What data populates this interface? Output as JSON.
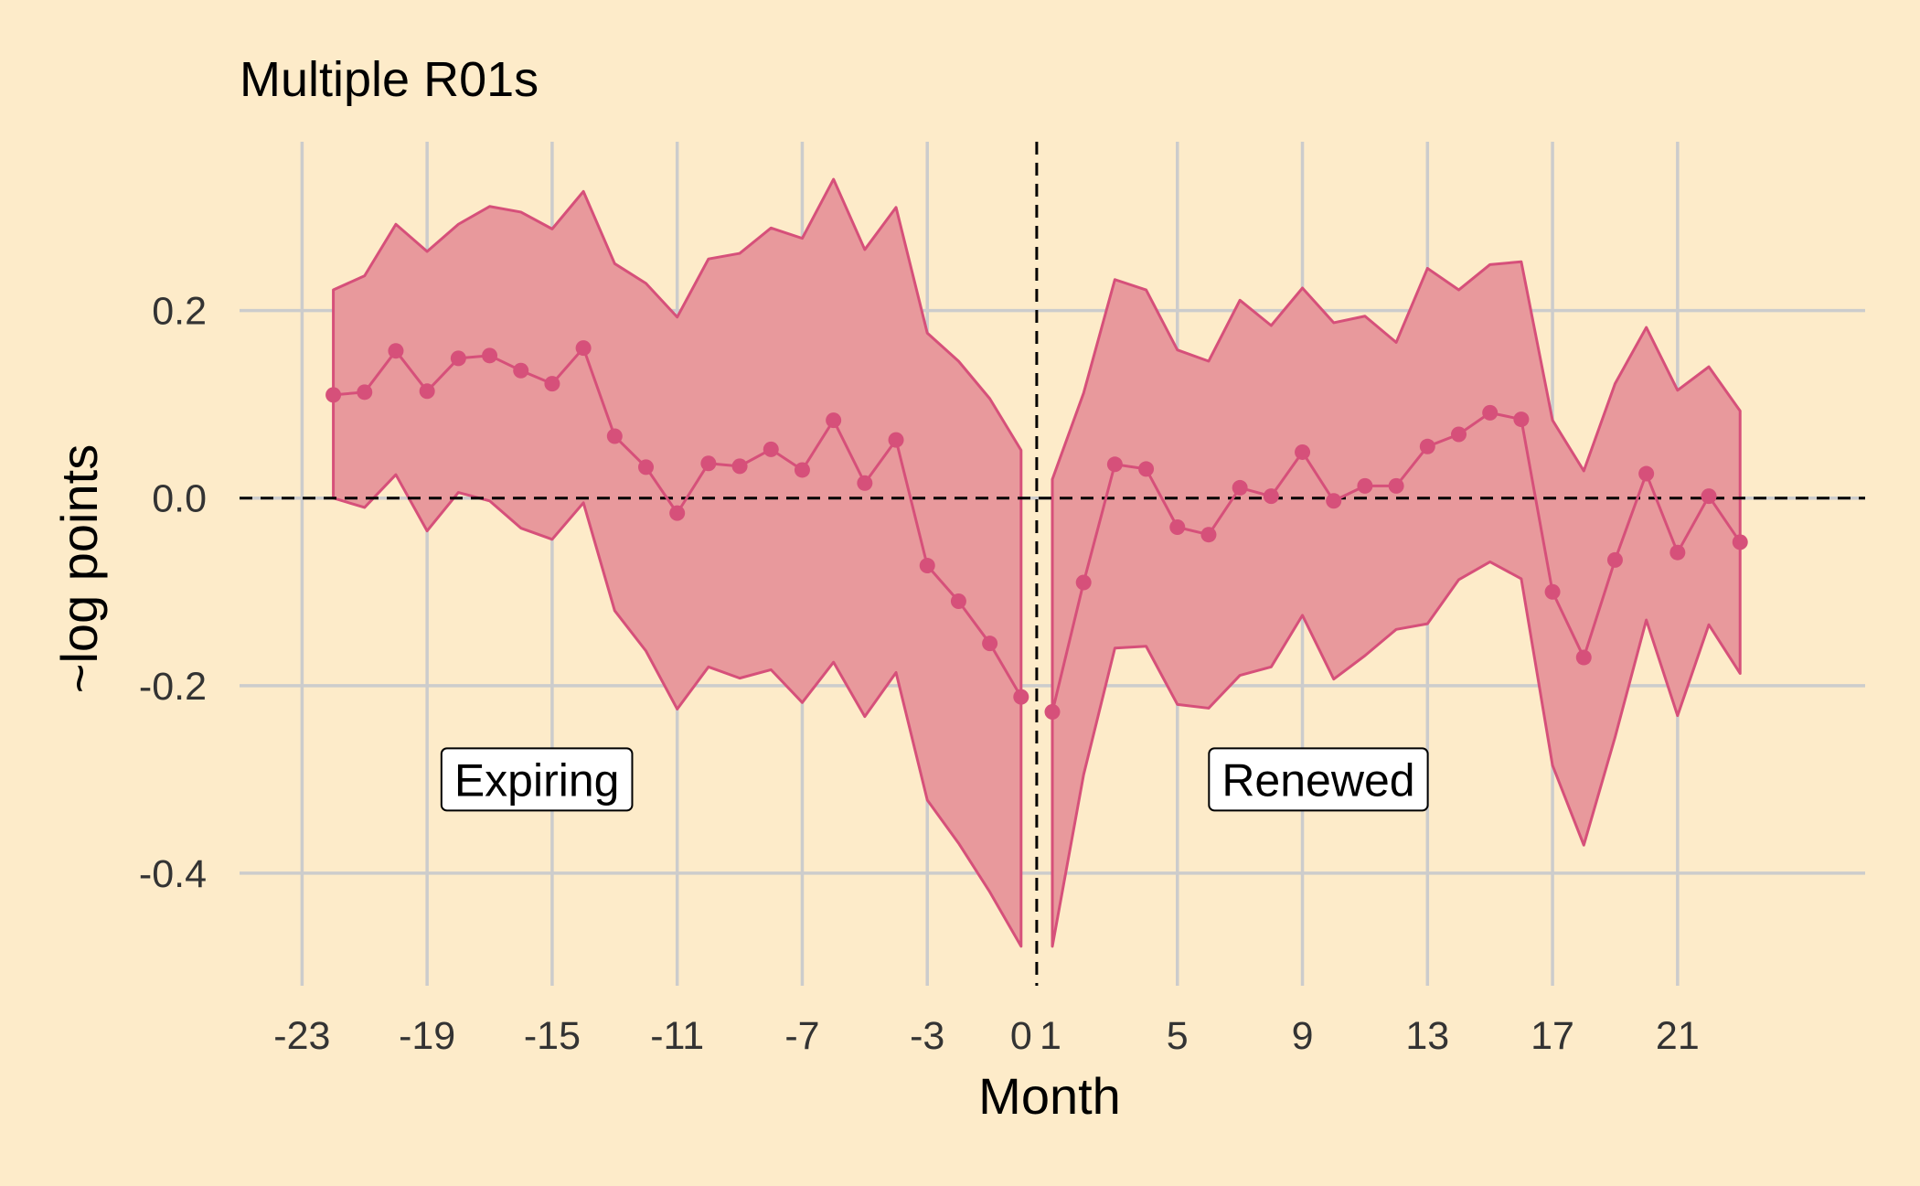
{
  "chart_data": {
    "type": "line",
    "title": "Multiple R01s",
    "xlabel": "Month",
    "ylabel": "~log points",
    "xlim": [
      -25,
      27
    ],
    "ylim": [
      -0.52,
      0.38
    ],
    "x_ticks": [
      -23,
      -19,
      -15,
      -11,
      -7,
      -3,
      0,
      1,
      5,
      9,
      13,
      17,
      21
    ],
    "x_tick_labels": [
      "-23",
      "-19",
      "-15",
      "-11",
      "-7",
      "-3",
      "0",
      "1",
      "5",
      "9",
      "13",
      "17",
      "21"
    ],
    "y_ticks": [
      0.2,
      0.0,
      -0.2,
      -0.4
    ],
    "y_tick_labels": [
      "0.2",
      "0.0",
      "-0.2",
      "-0.4"
    ],
    "grid": true,
    "reference_lines": {
      "horizontal": 0,
      "vertical": 0
    },
    "colors": {
      "line": "#d6507a",
      "band": "#e8999c",
      "background": "#fdebc9",
      "grid": "#cccccc"
    },
    "annotations": [
      {
        "text": "Expiring",
        "x": -19,
        "y": -0.3
      },
      {
        "text": "Renewed",
        "x": 6,
        "y": -0.3
      }
    ],
    "series": [
      {
        "segment": "expiring",
        "x": [
          -22,
          -21,
          -20,
          -19,
          -18,
          -17,
          -16,
          -15,
          -14,
          -13,
          -12,
          -11,
          -10,
          -9,
          -8,
          -7,
          -6,
          -5,
          -4,
          -3,
          -2,
          -1,
          0
        ],
        "y": [
          0.11,
          0.113,
          0.157,
          0.114,
          0.149,
          0.152,
          0.136,
          0.122,
          0.16,
          0.066,
          0.033,
          -0.016,
          0.037,
          0.034,
          0.052,
          0.03,
          0.083,
          0.016,
          0.062,
          -0.072,
          -0.11,
          -0.155,
          -0.212
        ],
        "lower": [
          0.0,
          -0.01,
          0.025,
          -0.035,
          0.006,
          -0.003,
          -0.032,
          -0.044,
          -0.005,
          -0.12,
          -0.163,
          -0.225,
          -0.18,
          -0.192,
          -0.183,
          -0.218,
          -0.175,
          -0.233,
          -0.186,
          -0.322,
          -0.368,
          -0.42,
          -0.478
        ],
        "upper": [
          0.222,
          0.237,
          0.292,
          0.263,
          0.292,
          0.311,
          0.305,
          0.287,
          0.327,
          0.25,
          0.229,
          0.193,
          0.255,
          0.261,
          0.288,
          0.277,
          0.34,
          0.265,
          0.31,
          0.176,
          0.146,
          0.106,
          0.051
        ]
      },
      {
        "segment": "renewed",
        "x": [
          1,
          2,
          3,
          4,
          5,
          6,
          7,
          8,
          9,
          10,
          11,
          12,
          13,
          14,
          15,
          16,
          17,
          18,
          19,
          20,
          21,
          22,
          23
        ],
        "y": [
          -0.228,
          -0.09,
          0.036,
          0.031,
          -0.031,
          -0.039,
          0.011,
          0.002,
          0.049,
          -0.003,
          0.013,
          0.013,
          0.055,
          0.068,
          0.091,
          0.084,
          -0.1,
          -0.17,
          -0.066,
          0.026,
          -0.058,
          0.002,
          -0.047
        ],
        "lower": [
          -0.478,
          -0.295,
          -0.16,
          -0.158,
          -0.22,
          -0.224,
          -0.189,
          -0.18,
          -0.125,
          -0.193,
          -0.168,
          -0.14,
          -0.134,
          -0.087,
          -0.068,
          -0.086,
          -0.285,
          -0.37,
          -0.255,
          -0.13,
          -0.232,
          -0.135,
          -0.187
        ],
        "upper": [
          0.02,
          0.112,
          0.233,
          0.222,
          0.158,
          0.146,
          0.211,
          0.184,
          0.224,
          0.187,
          0.194,
          0.166,
          0.245,
          0.222,
          0.249,
          0.252,
          0.083,
          0.029,
          0.122,
          0.182,
          0.115,
          0.14,
          0.093
        ]
      }
    ]
  }
}
